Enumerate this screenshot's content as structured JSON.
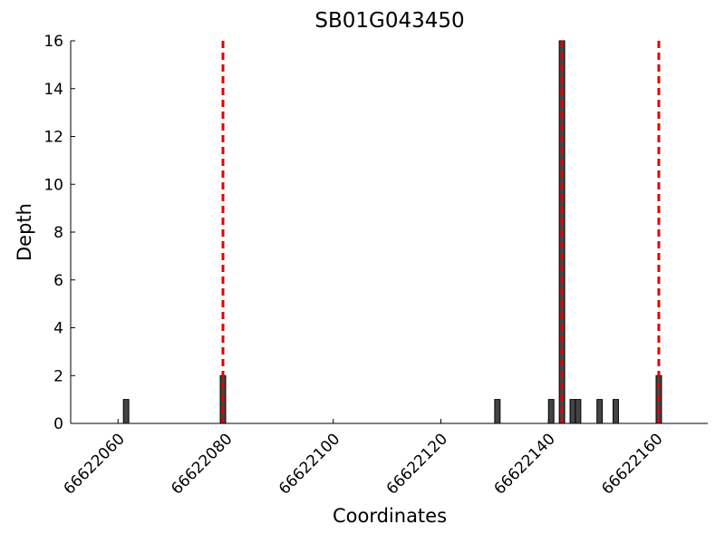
{
  "chart_data": {
    "type": "bar",
    "title": "SB01G043450",
    "x_label": "Coordinates",
    "y_label": "Depth",
    "x": [
      66622061,
      66622079,
      66622130,
      66622140,
      66622142,
      66622144,
      66622145,
      66622149,
      66622152,
      66622160
    ],
    "values": [
      1,
      2,
      1,
      1,
      16,
      1,
      1,
      1,
      1,
      2
    ],
    "color": "#444444",
    "vlines": [
      66622079.5,
      66622142.5,
      66622160.5
    ],
    "vline_color": "#e00000",
    "xlim": [
      66622051.2,
      66622169.6
    ],
    "xticks": [
      66622060,
      66622080,
      66622100,
      66622120,
      66622140,
      66622160
    ],
    "ylim": [
      0,
      16
    ],
    "yticks": [
      0,
      2,
      4,
      6,
      8,
      10,
      12,
      14,
      16
    ]
  }
}
